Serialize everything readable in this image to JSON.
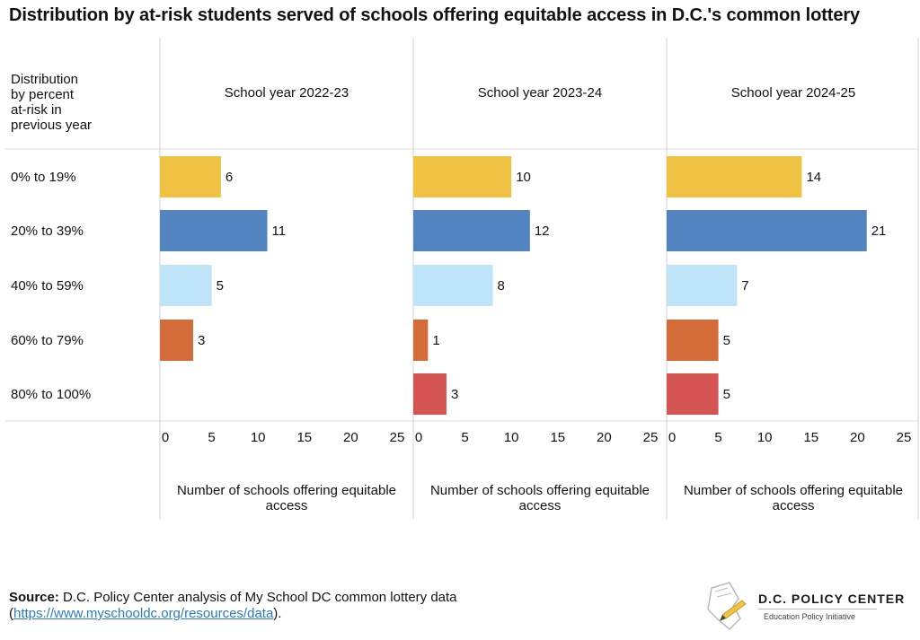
{
  "title": "Distribution by at-risk students served of schools offering equitable access in D.C.'s common lottery",
  "row_header": "Distribution by percent at-risk in previous year",
  "chart_data": {
    "type": "bar",
    "orientation": "horizontal",
    "categories": [
      "0% to 19%",
      "20% to 39%",
      "40% to 59%",
      "60% to 79%",
      "80% to 100%"
    ],
    "colors": [
      "#f0c244",
      "#5285c0",
      "#bfe4f8",
      "#d46c39",
      "#d55555"
    ],
    "xlim": [
      0,
      25
    ],
    "xticks": [
      0,
      5,
      10,
      15,
      20,
      25
    ],
    "xlabel": "Number of schools offering equitable access",
    "panels": [
      {
        "name": "School year 2022-23",
        "values": [
          6,
          11,
          5,
          3,
          null
        ]
      },
      {
        "name": "School year 2023-24",
        "values": [
          10,
          12,
          8,
          1,
          3
        ]
      },
      {
        "name": "School year 2024-25",
        "values": [
          14,
          21,
          7,
          5,
          5
        ]
      }
    ]
  },
  "footer": {
    "source_label": "Source:",
    "source_text": " D.C. Policy Center analysis of My School DC common lottery data",
    "open_paren": "(",
    "link_text": "https://www.myschooldc.org/resources/data",
    "close_text": ")."
  },
  "logo": {
    "title": "D.C. POLICY CENTER",
    "subtitle": "Education Policy Initiative"
  }
}
